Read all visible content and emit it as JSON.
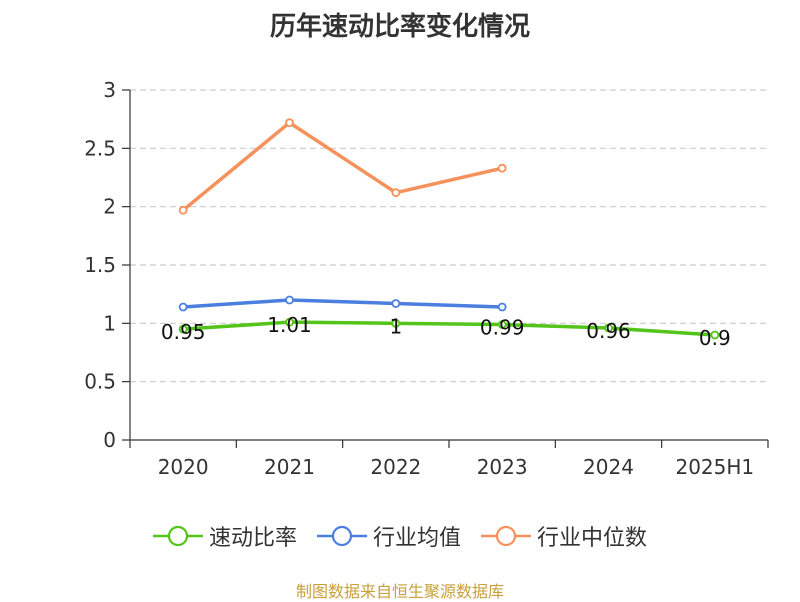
{
  "chart_data": {
    "type": "line",
    "title": "历年速动比率变化情况",
    "categories": [
      "2020",
      "2021",
      "2022",
      "2023",
      "2024",
      "2025H1"
    ],
    "ylim": [
      0,
      3
    ],
    "yticks": [
      "0",
      "0.5",
      "1",
      "1.5",
      "2",
      "2.5",
      "3"
    ],
    "grid": true,
    "legend_position": "bottom",
    "series": [
      {
        "name": "速动比率",
        "color": "#52c41a",
        "values": [
          0.95,
          1.01,
          1.0,
          0.99,
          0.96,
          0.9
        ],
        "labels": [
          "0.95",
          "1.01",
          "1",
          "0.99",
          "0.96",
          "0.9"
        ]
      },
      {
        "name": "行业均值",
        "color": "#4a7fe0",
        "values": [
          1.14,
          1.2,
          1.17,
          1.14,
          null,
          null
        ]
      },
      {
        "name": "行业中位数",
        "color": "#f5915a",
        "values": [
          1.97,
          2.72,
          2.12,
          2.33,
          null,
          null
        ]
      }
    ]
  },
  "source": "制图数据来自恒生聚源数据库"
}
